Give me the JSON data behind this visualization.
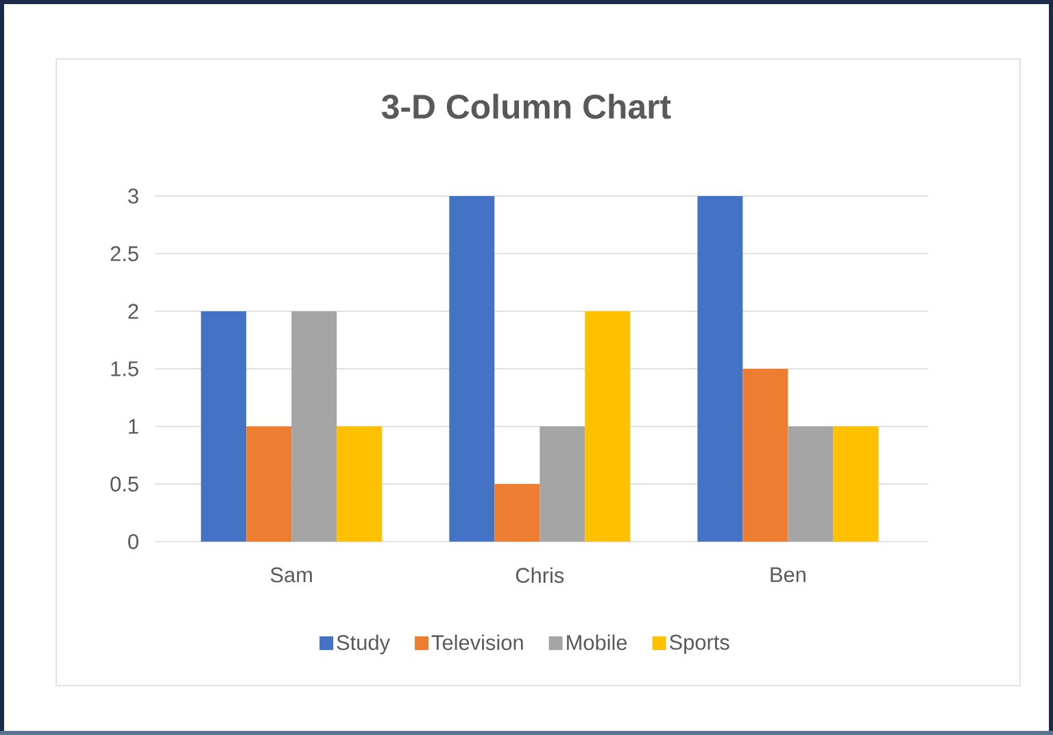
{
  "chart_data": {
    "type": "bar",
    "title": "3-D Column Chart",
    "categories": [
      "Sam",
      "Chris",
      "Ben"
    ],
    "series": [
      {
        "name": "Study",
        "color": "#4472c4",
        "values": [
          2,
          3,
          3
        ]
      },
      {
        "name": "Television",
        "color": "#ed7d31",
        "values": [
          1,
          0.5,
          1.5
        ]
      },
      {
        "name": "Mobile",
        "color": "#a5a5a5",
        "values": [
          2,
          1,
          1
        ]
      },
      {
        "name": "Sports",
        "color": "#ffc000",
        "values": [
          1,
          2,
          1
        ]
      }
    ],
    "ylim": [
      0,
      3
    ],
    "yticks": [
      0,
      0.5,
      1,
      1.5,
      2,
      2.5,
      3
    ],
    "grid": "y",
    "legend": "bottom"
  }
}
